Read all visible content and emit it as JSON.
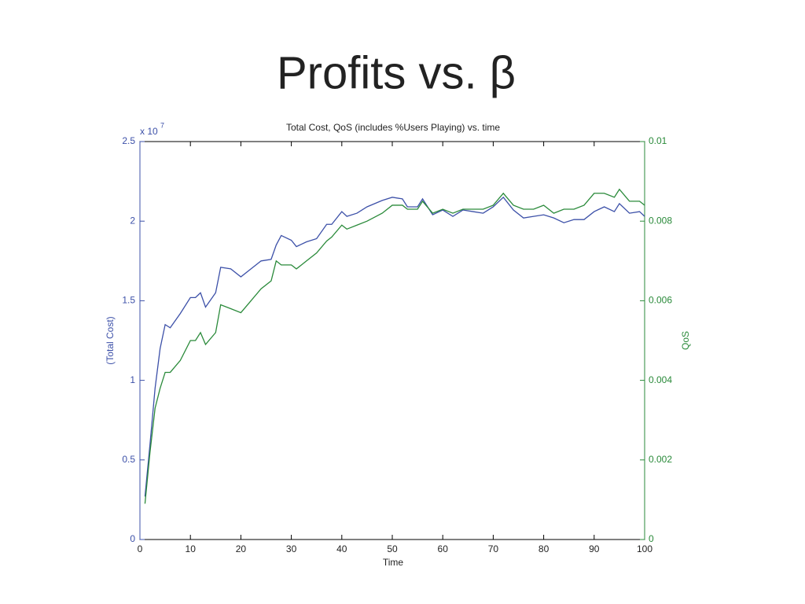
{
  "slide_title": "Profits vs. β",
  "chart_data": {
    "type": "line",
    "title": "Total Cost, QoS (includes %Users Playing) vs. time",
    "xlabel": "Time",
    "ylabel": "(Total Cost)",
    "y2label": "QoS",
    "y_multiplier": {
      "base": "x 10",
      "exponent": "7"
    },
    "x": [
      1,
      2,
      3,
      4,
      5,
      6,
      8,
      10,
      11,
      12,
      13,
      15,
      16,
      18,
      20,
      22,
      24,
      26,
      27,
      28,
      30,
      31,
      33,
      35,
      37,
      38,
      40,
      41,
      43,
      45,
      48,
      50,
      52,
      53,
      55,
      56,
      58,
      60,
      62,
      64,
      66,
      68,
      70,
      72,
      74,
      76,
      78,
      80,
      82,
      84,
      86,
      88,
      90,
      92,
      94,
      95,
      97,
      99,
      100
    ],
    "series": [
      {
        "name": "Total Cost",
        "color": "#3c50a8",
        "axis": "y",
        "values": [
          0.27,
          0.6,
          0.95,
          1.2,
          1.35,
          1.33,
          1.42,
          1.52,
          1.52,
          1.55,
          1.46,
          1.55,
          1.71,
          1.7,
          1.65,
          1.7,
          1.75,
          1.76,
          1.85,
          1.91,
          1.88,
          1.84,
          1.87,
          1.89,
          1.98,
          1.98,
          2.06,
          2.03,
          2.05,
          2.09,
          2.13,
          2.15,
          2.14,
          2.09,
          2.09,
          2.14,
          2.04,
          2.07,
          2.03,
          2.07,
          2.06,
          2.05,
          2.09,
          2.15,
          2.07,
          2.02,
          2.03,
          2.04,
          2.02,
          1.99,
          2.01,
          2.01,
          2.06,
          2.09,
          2.06,
          2.11,
          2.05,
          2.06,
          2.03
        ]
      },
      {
        "name": "QoS",
        "color": "#2a8a3a",
        "axis": "y2",
        "values": [
          0.0009,
          0.0022,
          0.0033,
          0.0038,
          0.0042,
          0.0042,
          0.0045,
          0.005,
          0.005,
          0.0052,
          0.0049,
          0.0052,
          0.0059,
          0.0058,
          0.0057,
          0.006,
          0.0063,
          0.0065,
          0.007,
          0.0069,
          0.0069,
          0.0068,
          0.007,
          0.0072,
          0.0075,
          0.0076,
          0.0079,
          0.0078,
          0.0079,
          0.008,
          0.0082,
          0.0084,
          0.0084,
          0.0083,
          0.0083,
          0.0085,
          0.0082,
          0.0083,
          0.0082,
          0.0083,
          0.0083,
          0.0083,
          0.0084,
          0.0087,
          0.0084,
          0.0083,
          0.0083,
          0.0084,
          0.0082,
          0.0083,
          0.0083,
          0.0084,
          0.0087,
          0.0087,
          0.0086,
          0.0088,
          0.0085,
          0.0085,
          0.0084
        ]
      }
    ],
    "xlim": [
      0,
      100
    ],
    "xticks": [
      0,
      10,
      20,
      30,
      40,
      50,
      60,
      70,
      80,
      90,
      100
    ],
    "ylim": [
      0,
      2.5
    ],
    "yticks": [
      0,
      0.5,
      1,
      1.5,
      2,
      2.5
    ],
    "y2lim": [
      0,
      0.01
    ],
    "y2ticks": [
      0,
      0.002,
      0.004,
      0.006,
      0.008,
      0.01
    ],
    "axis_color": "#3c50a8",
    "axis2_color": "#2a8a3a",
    "grid": false
  }
}
